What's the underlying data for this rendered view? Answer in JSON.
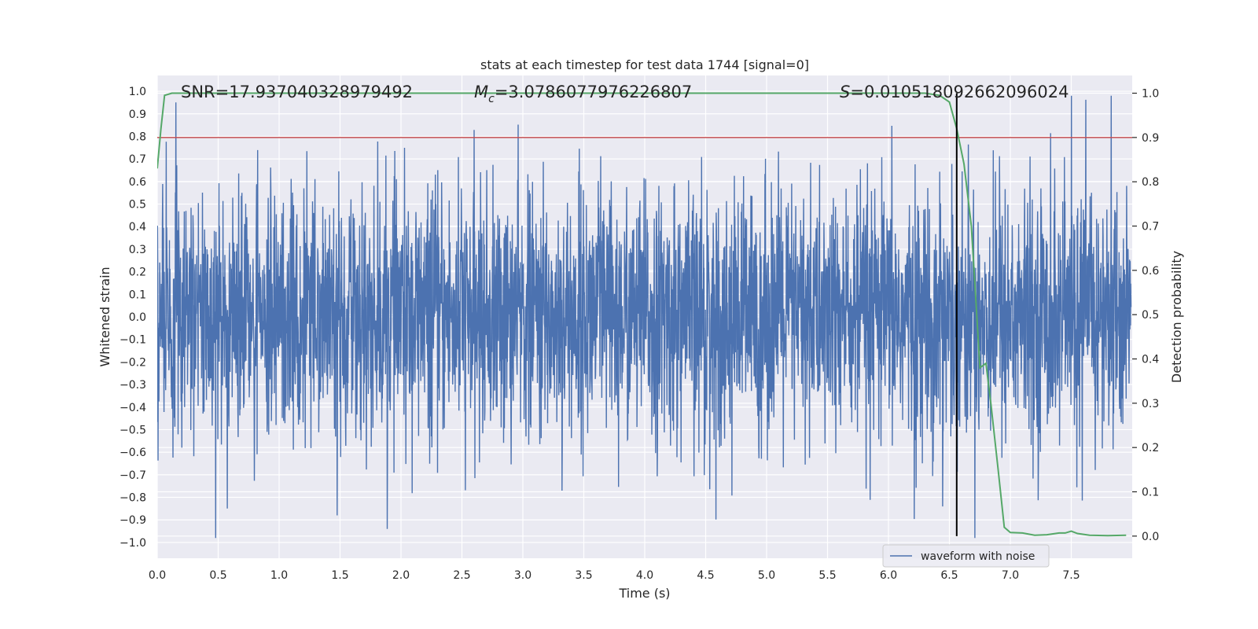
{
  "chart_data": {
    "type": "line",
    "title": "stats at each timestep for test data 1744 [signal=0]",
    "xlabel": "Time (s)",
    "ylabel_left": "Whitened strain",
    "ylabel_right": "Detection probability",
    "xlim": [
      0.0,
      8.0
    ],
    "ylim_left": [
      -1.07,
      1.07
    ],
    "ylim_right": [
      -0.05,
      1.04
    ],
    "x_ticks": [
      0.0,
      0.5,
      1.0,
      1.5,
      2.0,
      2.5,
      3.0,
      3.5,
      4.0,
      4.5,
      5.0,
      5.5,
      6.0,
      6.5,
      7.0,
      7.5
    ],
    "x_tick_labels": [
      "0.0",
      "0.5",
      "1.0",
      "1.5",
      "2.0",
      "2.5",
      "3.0",
      "3.5",
      "4.0",
      "4.5",
      "5.0",
      "5.5",
      "6.0",
      "6.5",
      "7.0",
      "7.5"
    ],
    "y_left_ticks": [
      1.0,
      0.9,
      0.8,
      0.7,
      0.6,
      0.5,
      0.4,
      0.3,
      0.2,
      0.1,
      0.0,
      -0.1,
      -0.2,
      -0.3,
      -0.4,
      -0.5,
      -0.6,
      -0.7,
      -0.8,
      -0.9,
      -1.0
    ],
    "y_left_tick_labels": [
      "1.0",
      "0.9",
      "0.8",
      "0.7",
      "0.6",
      "0.5",
      "0.4",
      "0.3",
      "0.2",
      "0.1",
      "0.0",
      "−0.1",
      "−0.2",
      "−0.3",
      "−0.4",
      "−0.5",
      "−0.6",
      "−0.7",
      "−0.8",
      "−0.9",
      "−1.0"
    ],
    "y_right_ticks": [
      1.0,
      0.9,
      0.8,
      0.7,
      0.6,
      0.5,
      0.4,
      0.3,
      0.2,
      0.1,
      0.0
    ],
    "y_right_tick_labels": [
      "1.0",
      "0.9",
      "0.8",
      "0.7",
      "0.6",
      "0.5",
      "0.4",
      "0.3",
      "0.2",
      "0.1",
      "0.0"
    ],
    "grid": true,
    "series": [
      {
        "name": "waveform with noise",
        "axis": "left",
        "color": "#4c72b0",
        "style": "dense noise trace, core amplitude about ±0.4, peaks reaching about ±1.0",
        "envelope_max": 0.98,
        "envelope_min": -0.98
      },
      {
        "name": "detection probability",
        "axis": "right",
        "color": "#55a868",
        "x": [
          0.0,
          0.03,
          0.06,
          0.12,
          0.5,
          1.0,
          2.0,
          3.0,
          4.0,
          5.0,
          5.5,
          6.0,
          6.3,
          6.42,
          6.5,
          6.56,
          6.62,
          6.68,
          6.72,
          6.75,
          6.8,
          6.84,
          6.9,
          6.95,
          7.0,
          7.1,
          7.2,
          7.3,
          7.4,
          7.45,
          7.5,
          7.55,
          7.65,
          7.8,
          7.95
        ],
        "y": [
          0.83,
          0.92,
          0.995,
          1.0,
          1.0,
          1.0,
          1.0,
          1.0,
          1.0,
          1.0,
          1.0,
          1.0,
          1.0,
          0.995,
          0.98,
          0.92,
          0.84,
          0.7,
          0.52,
          0.38,
          0.39,
          0.3,
          0.15,
          0.02,
          0.008,
          0.007,
          0.002,
          0.003,
          0.007,
          0.007,
          0.011,
          0.006,
          0.002,
          0.001,
          0.002
        ]
      }
    ],
    "threshold_line": {
      "axis": "right",
      "value": 0.9,
      "color": "#c44e52"
    },
    "vertical_marker": {
      "x": 6.56,
      "color": "#000000"
    },
    "annotations": [
      {
        "text": "SNR=17.937040328979492"
      },
      {
        "prefix": "M",
        "subscript": "c",
        "suffix": "=3.0786077976226807"
      },
      {
        "prefix": "S",
        "suffix": "=0.010518092662096024"
      }
    ],
    "legend": {
      "location": "lower-right",
      "entries": [
        "waveform with noise"
      ]
    }
  }
}
